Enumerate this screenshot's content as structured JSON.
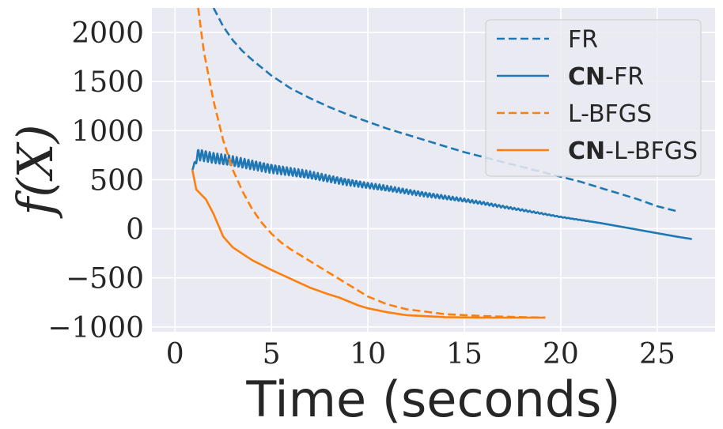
{
  "chart_data": {
    "type": "line",
    "title": "",
    "xlabel": "Time (seconds)",
    "ylabel": "f(X)",
    "xlim": [
      -1.2,
      28
    ],
    "ylim": [
      -1050,
      2250
    ],
    "xticks": [
      0,
      5,
      10,
      15,
      20,
      25
    ],
    "yticks": [
      -1000,
      -500,
      0,
      500,
      1000,
      1500,
      2000
    ],
    "xtick_labels": [
      "0",
      "5",
      "10",
      "15",
      "20",
      "25"
    ],
    "ytick_labels": [
      "−1000",
      "−500",
      "0",
      "500",
      "1000",
      "1500",
      "2000"
    ],
    "grid": true,
    "legend_position": "top-right",
    "legend": [
      {
        "bold": "",
        "rest": "FR"
      },
      {
        "bold": "CN",
        "rest": "-FR"
      },
      {
        "bold": "",
        "rest": "L-BFGS"
      },
      {
        "bold": "CN",
        "rest": "-L-BFGS"
      }
    ],
    "series": [
      {
        "name": "FR",
        "color": "#1f77b4",
        "style": "dashed",
        "x": [
          2.0,
          2.5,
          3.0,
          3.5,
          4.0,
          5.0,
          6.0,
          7.0,
          8.0,
          9.0,
          10.0,
          11.0,
          12.0,
          13.0,
          14.0,
          15.0,
          16.0,
          17.0,
          18.0,
          19.0,
          20.0,
          21.0,
          22.0,
          23.0,
          24.0,
          25.0,
          26.0
        ],
        "values": [
          2250,
          2060,
          1920,
          1810,
          1720,
          1560,
          1430,
          1330,
          1240,
          1160,
          1090,
          1020,
          960,
          900,
          840,
          780,
          730,
          680,
          630,
          580,
          530,
          480,
          420,
          360,
          300,
          230,
          180
        ]
      },
      {
        "name": "CN-FR",
        "color": "#1f77b4",
        "style": "solid",
        "oscillating": true,
        "x": [
          0.9,
          1.2,
          2.0,
          4.0,
          6.0,
          8.0,
          10.0,
          12.0,
          14.0,
          16.0,
          18.0,
          20.0,
          22.0,
          24.0,
          26.0,
          26.8
        ],
        "values": [
          600,
          760,
          720,
          650,
          580,
          510,
          440,
          380,
          320,
          260,
          190,
          120,
          60,
          -10,
          -80,
          -105
        ],
        "amplitude": [
          0,
          90,
          85,
          75,
          65,
          55,
          45,
          38,
          30,
          22,
          14,
          6,
          0,
          0,
          0,
          0
        ]
      },
      {
        "name": "L-BFGS",
        "color": "#ff7f0e",
        "style": "dashed",
        "x": [
          1.2,
          1.5,
          2.0,
          2.5,
          3.0,
          3.5,
          4.0,
          4.5,
          5.0,
          5.5,
          6.0,
          7.0,
          8.0,
          9.0,
          10.0,
          11.0,
          12.0,
          14.0,
          16.0,
          18.0,
          19.2
        ],
        "values": [
          2250,
          1800,
          1300,
          900,
          600,
          380,
          200,
          60,
          -50,
          -140,
          -210,
          -330,
          -450,
          -570,
          -690,
          -770,
          -820,
          -870,
          -890,
          -900,
          -905
        ]
      },
      {
        "name": "CN-L-BFGS",
        "color": "#ff7f0e",
        "style": "solid",
        "x": [
          0.9,
          1.1,
          1.3,
          1.6,
          2.0,
          2.5,
          3.0,
          4.0,
          5.0,
          6.0,
          7.0,
          8.0,
          8.5,
          9.0,
          9.5,
          10.0,
          11.0,
          12.0,
          14.0,
          16.0,
          18.0,
          19.2
        ],
        "values": [
          600,
          400,
          360,
          300,
          150,
          -80,
          -190,
          -320,
          -420,
          -510,
          -600,
          -670,
          -700,
          -740,
          -780,
          -810,
          -850,
          -880,
          -900,
          -905,
          -905,
          -905
        ]
      }
    ]
  }
}
